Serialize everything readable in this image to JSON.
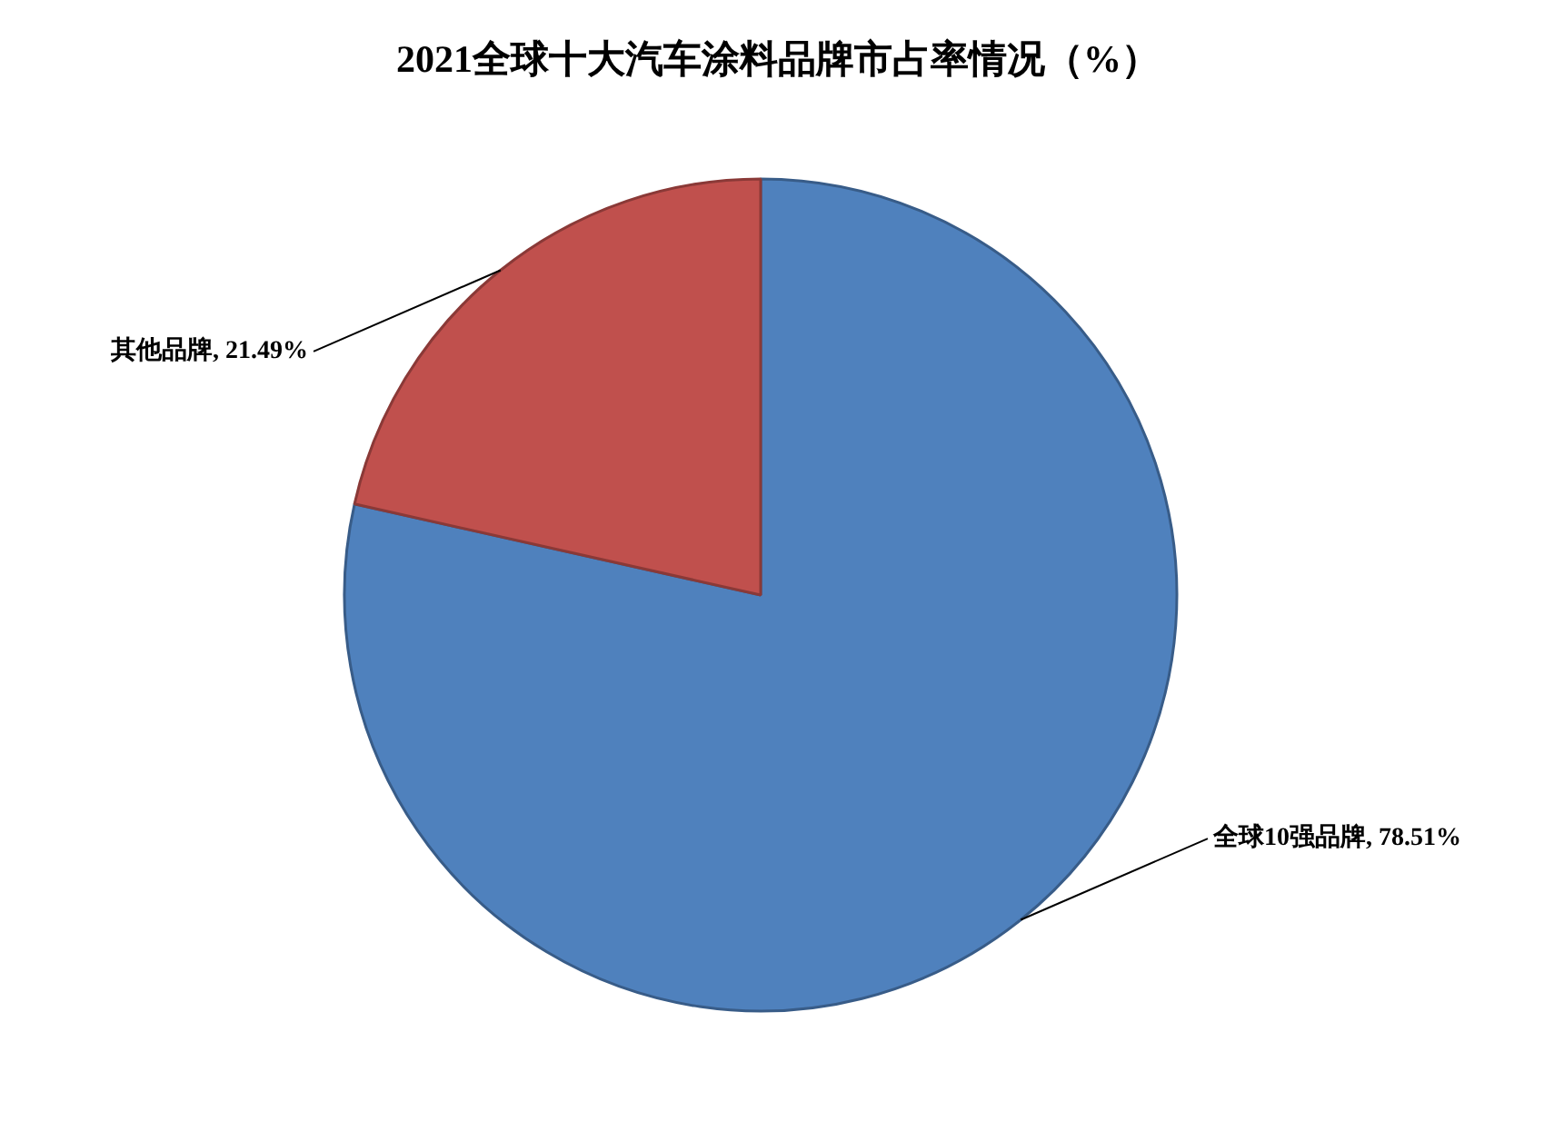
{
  "chart_data": {
    "type": "pie",
    "title": "2021全球十大汽车涂料品牌市占率情况（%）",
    "categories": [
      "全球10强品牌",
      "其他品牌"
    ],
    "values": [
      78.51,
      21.49
    ],
    "value_labels": [
      "78.51%",
      "21.49%"
    ],
    "colors": [
      "#4f81bd",
      "#c0504d"
    ],
    "legend": false
  }
}
